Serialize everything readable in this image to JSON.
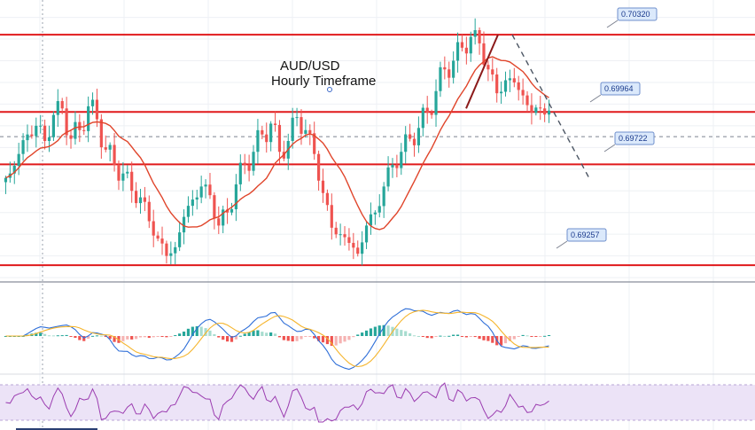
{
  "chart_data": {
    "type": "candlestick",
    "symbol": "AUD/USD",
    "timeframe": "Hourly Timeframe",
    "colors": {
      "up": "#26a69a",
      "down": "#ef5350",
      "level": "#e0191b",
      "ma": "#e0452b",
      "macd_line": "#2f6fd8",
      "signal_line": "#f5b52d",
      "rsi": "#9b3cb0",
      "rsi_band": "#ece3f7",
      "callout_bg": "#dbe9fb",
      "callout_border": "#6f8fcc",
      "callout_text": "#1a3a8c"
    },
    "levels": [
      {
        "value": 0.7032,
        "label": "0.70320"
      },
      {
        "value": 0.69964,
        "label": "0.69964"
      },
      {
        "value": 0.69722,
        "label": "0.69722"
      },
      {
        "value": 0.69257,
        "label": "0.69257"
      }
    ],
    "horizontal_lines": [
      0.7032,
      0.69964,
      0.69722,
      0.69257
    ],
    "dashed_level": 0.6985,
    "trend_up": {
      "from": [
        0.6998,
        0.0
      ],
      "to": [
        0.7032,
        0.0
      ]
    },
    "series": {
      "close_path": [
        0.6968,
        0.6977,
        0.6986,
        0.699,
        0.6983,
        0.6995,
        0.6998,
        0.6984,
        0.6988,
        0.6999,
        0.6993,
        0.6979,
        0.6972,
        0.6968,
        0.696,
        0.6957,
        0.6946,
        0.6938,
        0.693,
        0.6934,
        0.6948,
        0.6956,
        0.6962,
        0.6958,
        0.6944,
        0.695,
        0.6963,
        0.6972,
        0.6978,
        0.6986,
        0.6991,
        0.6978,
        0.6983,
        0.6994,
        0.6988,
        0.6977,
        0.6959,
        0.6943,
        0.694,
        0.6936,
        0.6931,
        0.6944,
        0.695,
        0.6962,
        0.6972,
        0.6978,
        0.6984,
        0.6989,
        0.6996,
        0.7006,
        0.7016,
        0.702,
        0.7026,
        0.7031,
        0.7028,
        0.7016,
        0.7005,
        0.7011,
        0.701,
        0.7004,
        0.6996,
        0.6998,
        0.6997
      ]
    }
  },
  "labels": {
    "title_line1": "AUD/USD",
    "title_line2": "Hourly Timeframe"
  }
}
